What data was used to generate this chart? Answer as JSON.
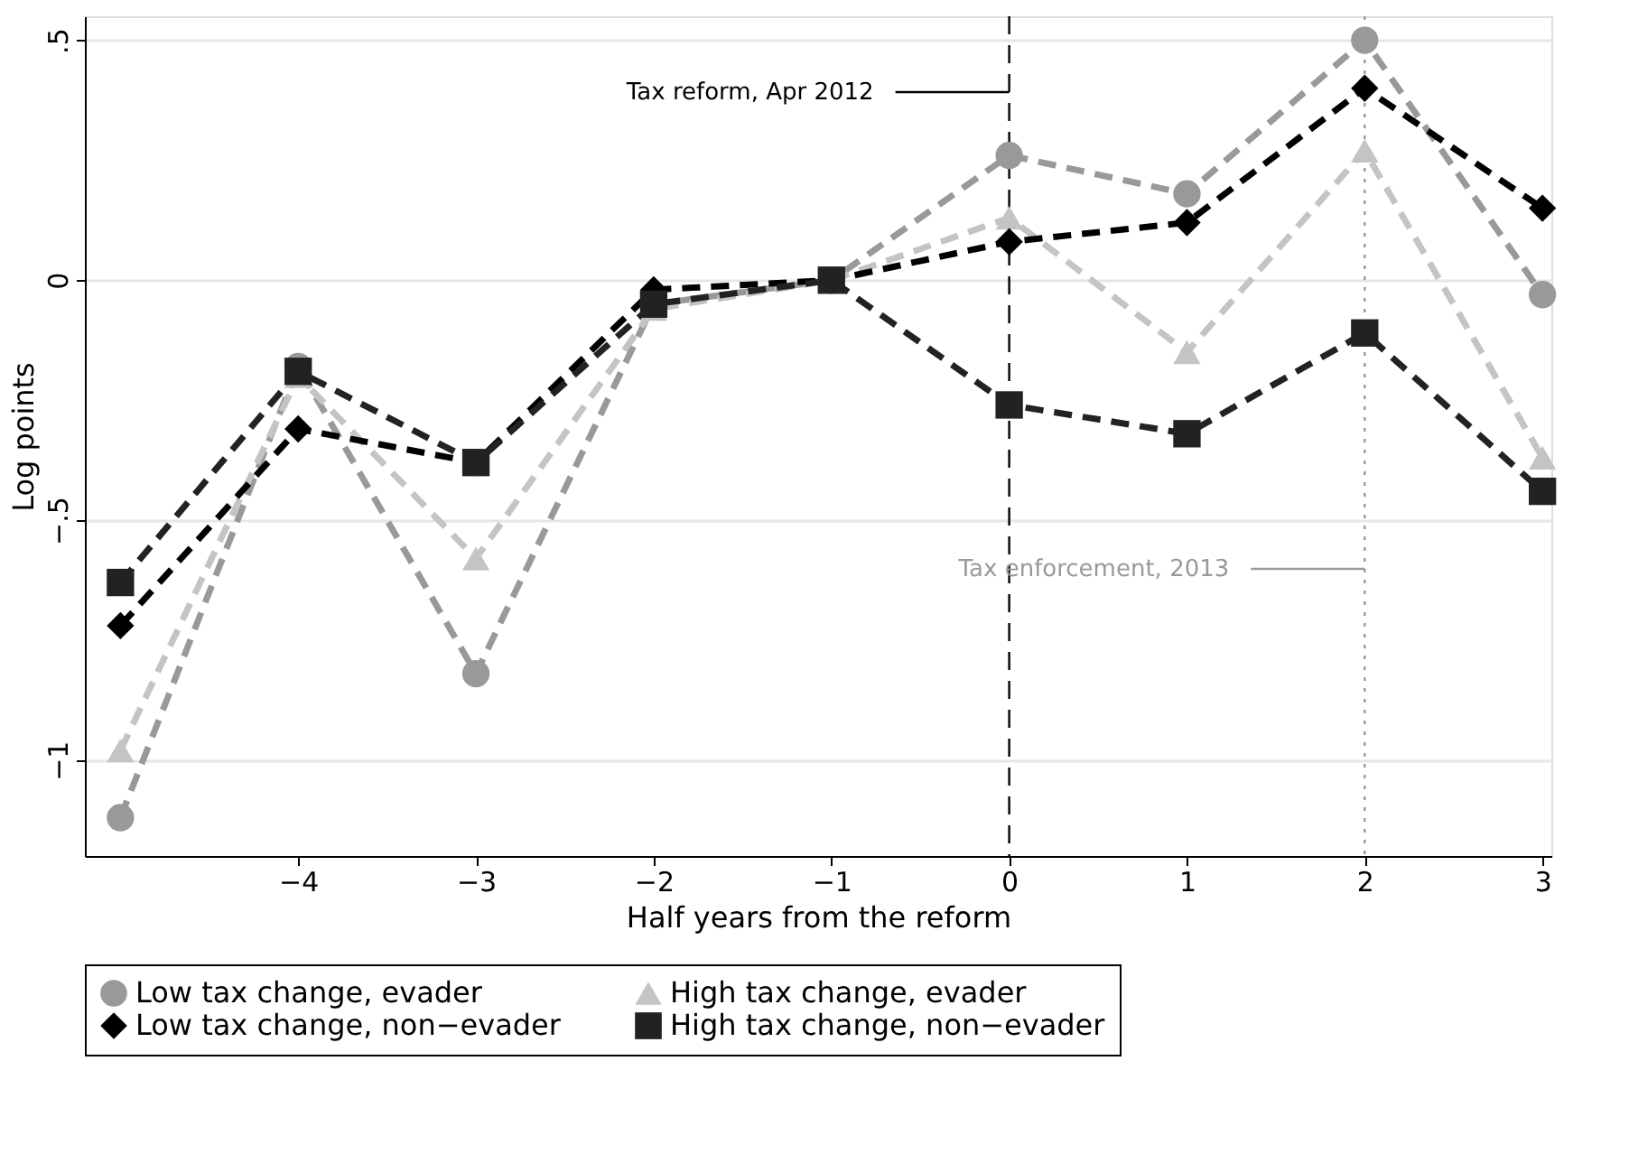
{
  "chart_data": {
    "type": "line",
    "xlabel": "Half years from the reform",
    "ylabel": "Log points",
    "x": [
      -5,
      -4,
      -3,
      -2,
      -1,
      0,
      1,
      2,
      3
    ],
    "xlim": [
      -5.2,
      3.05
    ],
    "ylim": [
      -1.2,
      0.55
    ],
    "xticks": [
      {
        "value": -4,
        "label": "−4"
      },
      {
        "value": -3,
        "label": "−3"
      },
      {
        "value": -2,
        "label": "−2"
      },
      {
        "value": -1,
        "label": "−1"
      },
      0,
      1,
      2,
      3
    ],
    "yticks": [
      {
        "value": -1,
        "label": "−1"
      },
      {
        "value": -0.5,
        "label": "−.5"
      },
      0,
      {
        "value": 0.5,
        "label": ".5"
      }
    ],
    "series": [
      {
        "name": "Low tax change, evader",
        "color": "#999999",
        "marker": "circle",
        "line_style": "dashed",
        "values": [
          -1.12,
          -0.18,
          -0.82,
          -0.05,
          0,
          0.26,
          0.18,
          0.5,
          -0.03
        ]
      },
      {
        "name": "High tax change, evader",
        "color": "#c4c4c4",
        "marker": "triangle",
        "line_style": "dashed",
        "values": [
          -0.98,
          -0.2,
          -0.58,
          -0.06,
          0,
          0.13,
          -0.15,
          0.27,
          -0.37
        ]
      },
      {
        "name": "Low tax change, non−evader",
        "color": "#000000",
        "marker": "diamond",
        "line_style": "dashed",
        "values": [
          -0.72,
          -0.31,
          -0.38,
          -0.02,
          0,
          0.08,
          0.12,
          0.4,
          0.15
        ]
      },
      {
        "name": "High tax change, non−evader",
        "color": "#222222",
        "marker": "square",
        "line_style": "dashed",
        "values": [
          -0.63,
          -0.19,
          -0.38,
          -0.05,
          0,
          -0.26,
          -0.32,
          -0.11,
          -0.44
        ]
      }
    ],
    "ref_lines": [
      {
        "axis": "x",
        "value": 0,
        "color": "#000000",
        "line_style": "dashed"
      },
      {
        "axis": "x",
        "value": 2,
        "color": "#999999",
        "line_style": "dotted"
      }
    ],
    "annotations": [
      "Tax reform, Apr 2012",
      "Tax enforcement, 2013"
    ],
    "grid": "y",
    "legend": "bottom"
  }
}
